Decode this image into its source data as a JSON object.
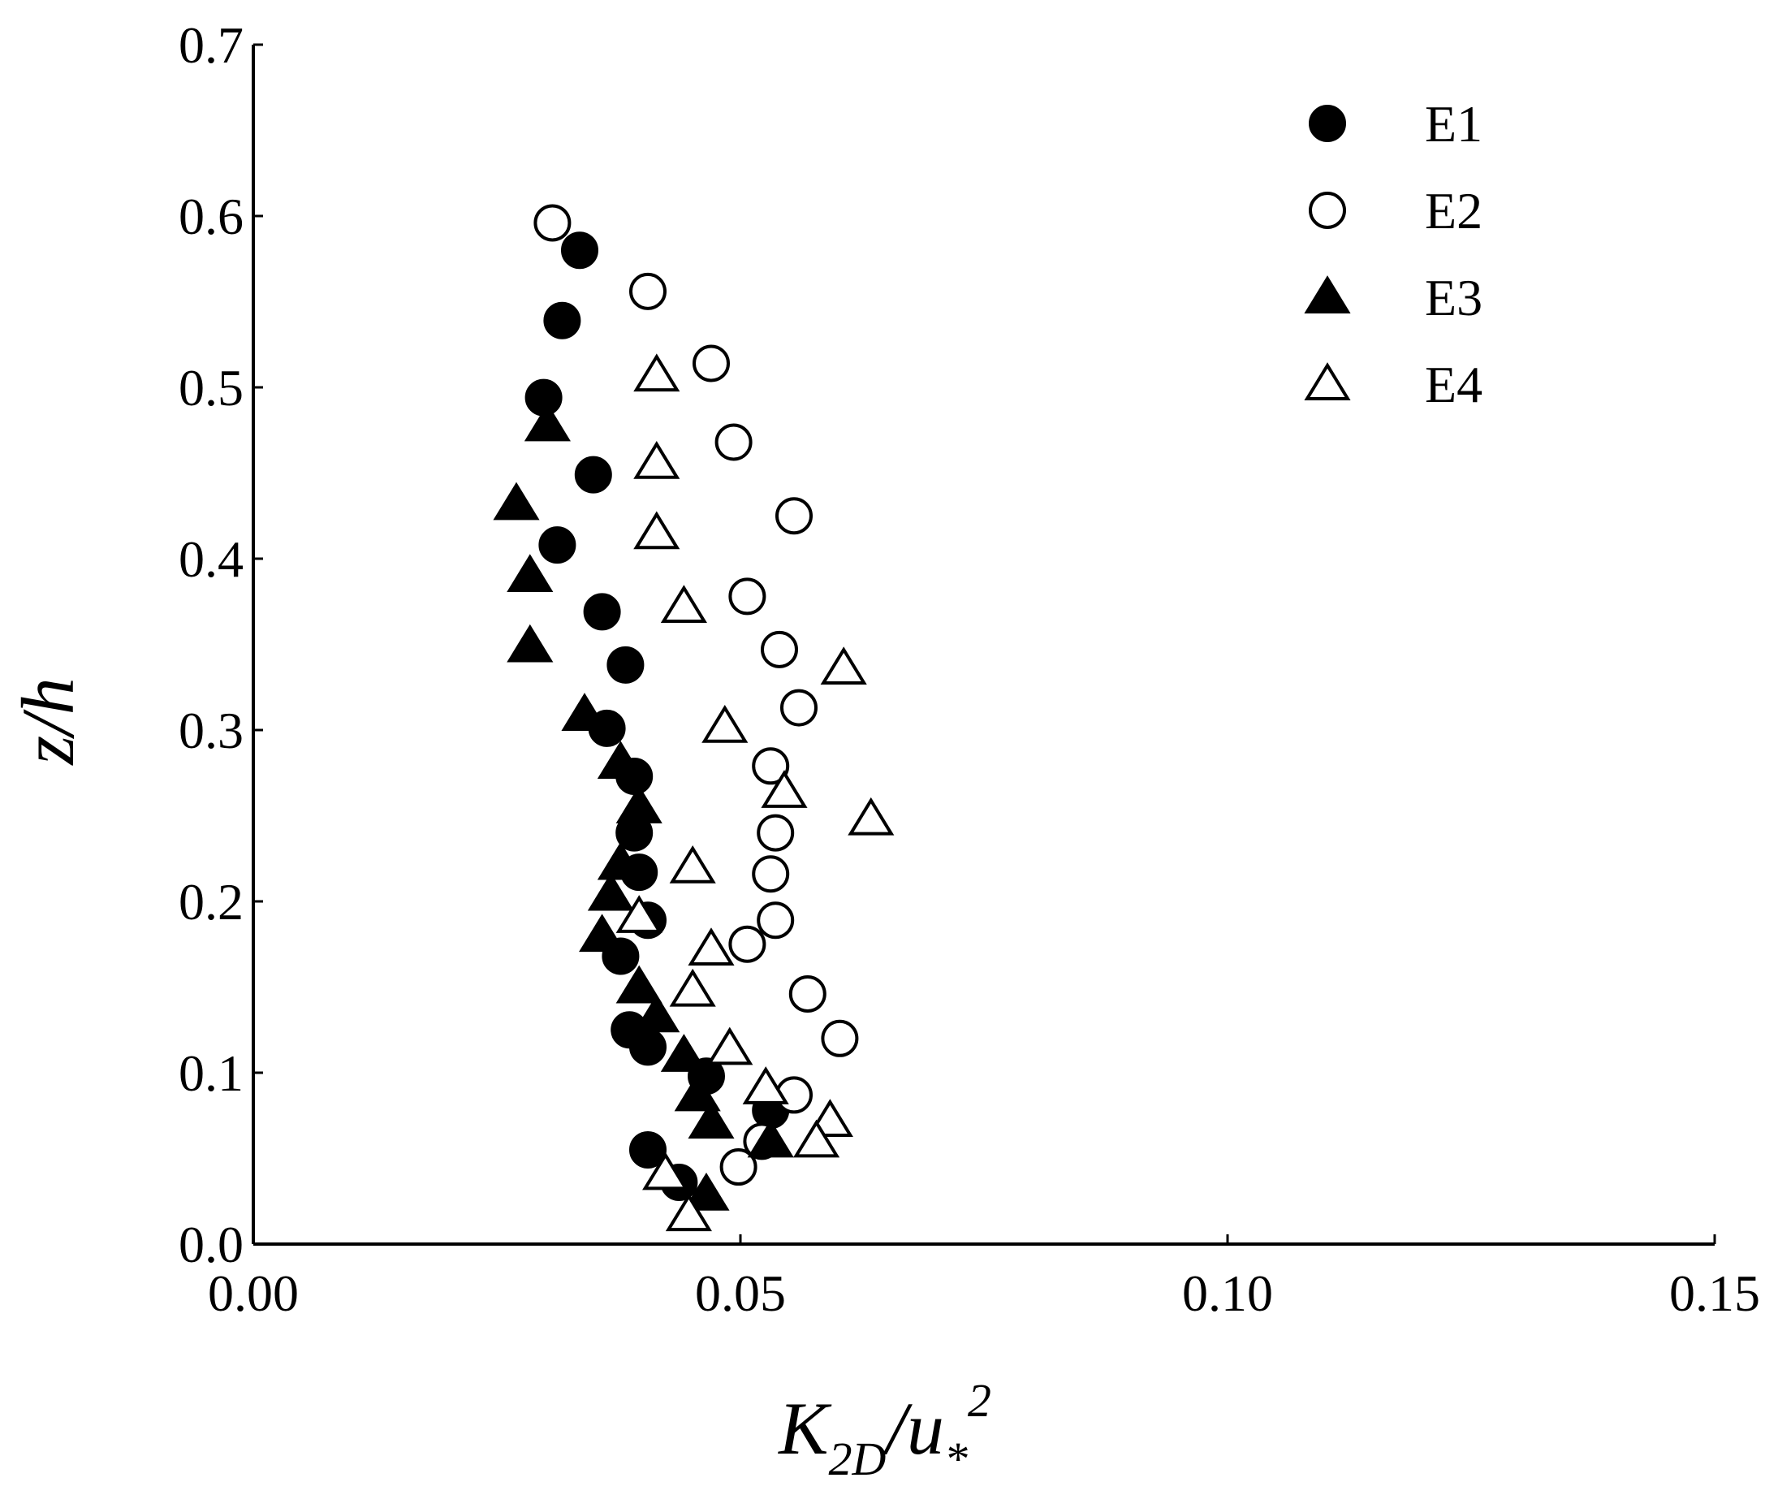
{
  "chart_data": {
    "type": "scatter",
    "title": "",
    "xlabel": {
      "base": "K",
      "sub": "2D",
      "sep": "/u",
      "sub2": "*",
      "sup": "2"
    },
    "ylabel": "z/h",
    "xlim": [
      0,
      0.15
    ],
    "ylim": [
      0,
      0.7
    ],
    "xticks": [
      "0.00",
      "0.05",
      "0.10",
      "0.15"
    ],
    "yticks": [
      "0.0",
      "0.1",
      "0.2",
      "0.3",
      "0.4",
      "0.5",
      "0.6",
      "0.7"
    ],
    "grid": false,
    "legend_position": "top-right",
    "series": [
      {
        "name": "E1",
        "marker": "circle",
        "filled": true,
        "points": [
          [
            0.0335,
            0.58
          ],
          [
            0.0317,
            0.539
          ],
          [
            0.0298,
            0.494
          ],
          [
            0.0349,
            0.449
          ],
          [
            0.0312,
            0.408
          ],
          [
            0.0358,
            0.369
          ],
          [
            0.0382,
            0.338
          ],
          [
            0.0363,
            0.301
          ],
          [
            0.0391,
            0.273
          ],
          [
            0.0391,
            0.24
          ],
          [
            0.0396,
            0.217
          ],
          [
            0.0405,
            0.189
          ],
          [
            0.0377,
            0.168
          ],
          [
            0.0386,
            0.125
          ],
          [
            0.0405,
            0.115
          ],
          [
            0.0465,
            0.098
          ],
          [
            0.0531,
            0.078
          ],
          [
            0.0405,
            0.055
          ],
          [
            0.0437,
            0.036
          ]
        ]
      },
      {
        "name": "E2",
        "marker": "circle",
        "filled": false,
        "points": [
          [
            0.0307,
            0.596
          ],
          [
            0.0405,
            0.556
          ],
          [
            0.047,
            0.514
          ],
          [
            0.0493,
            0.468
          ],
          [
            0.0555,
            0.425
          ],
          [
            0.0507,
            0.378
          ],
          [
            0.054,
            0.347
          ],
          [
            0.056,
            0.313
          ],
          [
            0.0531,
            0.279
          ],
          [
            0.0536,
            0.24
          ],
          [
            0.0531,
            0.216
          ],
          [
            0.0536,
            0.189
          ],
          [
            0.0507,
            0.175
          ],
          [
            0.0569,
            0.146
          ],
          [
            0.0602,
            0.12
          ],
          [
            0.0555,
            0.087
          ],
          [
            0.0522,
            0.06
          ],
          [
            0.0498,
            0.045
          ]
        ]
      },
      {
        "name": "E3",
        "marker": "triangle",
        "filled": true,
        "points": [
          [
            0.0302,
            0.478
          ],
          [
            0.027,
            0.432
          ],
          [
            0.0284,
            0.39
          ],
          [
            0.0284,
            0.349
          ],
          [
            0.034,
            0.309
          ],
          [
            0.0377,
            0.281
          ],
          [
            0.0396,
            0.255
          ],
          [
            0.0377,
            0.222
          ],
          [
            0.0367,
            0.204
          ],
          [
            0.0358,
            0.18
          ],
          [
            0.0396,
            0.15
          ],
          [
            0.0414,
            0.133
          ],
          [
            0.0442,
            0.11
          ],
          [
            0.0456,
            0.087
          ],
          [
            0.047,
            0.071
          ],
          [
            0.0531,
            0.06
          ],
          [
            0.0465,
            0.029
          ]
        ]
      },
      {
        "name": "E4",
        "marker": "triangle",
        "filled": false,
        "points": [
          [
            0.0414,
            0.507
          ],
          [
            0.0414,
            0.456
          ],
          [
            0.0414,
            0.415
          ],
          [
            0.0442,
            0.372
          ],
          [
            0.0606,
            0.336
          ],
          [
            0.0484,
            0.302
          ],
          [
            0.0545,
            0.264
          ],
          [
            0.0634,
            0.248
          ],
          [
            0.0451,
            0.22
          ],
          [
            0.0396,
            0.191
          ],
          [
            0.047,
            0.172
          ],
          [
            0.0451,
            0.148
          ],
          [
            0.0489,
            0.114
          ],
          [
            0.0526,
            0.091
          ],
          [
            0.0592,
            0.072
          ],
          [
            0.0578,
            0.06
          ],
          [
            0.0423,
            0.041
          ],
          [
            0.0447,
            0.017
          ]
        ]
      }
    ]
  }
}
